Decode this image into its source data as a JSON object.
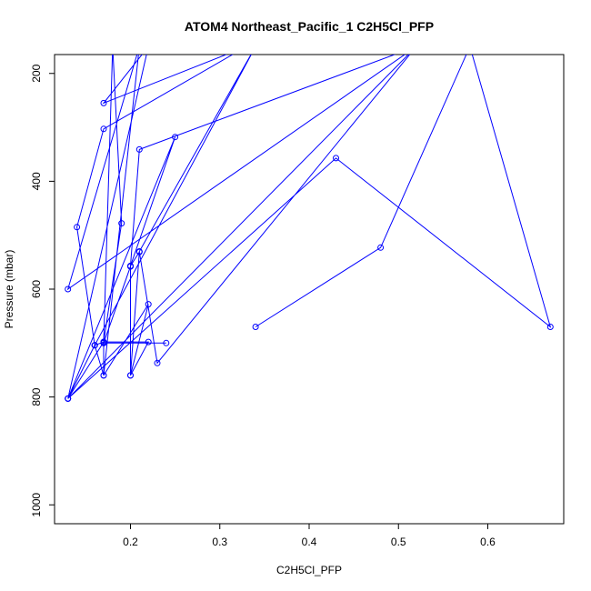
{
  "chart_data": {
    "type": "line",
    "title": "ATOM4 Northeast_Pacific_1 C2H5Cl_PFP",
    "xlabel": "C2H5Cl_PFP",
    "ylabel": "Pressure (mbar)",
    "xlim": [
      0.115,
      0.685
    ],
    "ylim": [
      1035,
      165
    ],
    "y_reversed": true,
    "grid": false,
    "x_ticks": [
      0.2,
      0.3,
      0.4,
      0.5,
      0.6
    ],
    "x_tick_labels": [
      "0.2",
      "0.3",
      "0.4",
      "0.5",
      "0.6"
    ],
    "y_ticks": [
      200,
      400,
      600,
      800,
      1000
    ],
    "y_tick_labels": [
      "200",
      "400",
      "600",
      "800",
      "1000"
    ],
    "series": [
      {
        "color": "#0000ff",
        "marker": "open-circle",
        "x": [
          0.34,
          0.48,
          0.58,
          0.67,
          0.43,
          0.13,
          0.52,
          0.23,
          0.21,
          0.2,
          0.21,
          0.52,
          0.13,
          0.21,
          0.17,
          0.22,
          0.2,
          0.22,
          0.17,
          0.16,
          0.14,
          0.17,
          0.33,
          0.17,
          0.22,
          0.13,
          0.25,
          0.2,
          0.2,
          0.21,
          0.34,
          0.16,
          0.17,
          0.19,
          0.18,
          0.17,
          0.13,
          0.16,
          0.17,
          0.17,
          0.24,
          0.17,
          0.2
        ],
        "y": [
          670,
          523,
          150,
          670,
          357,
          803,
          150,
          737,
          531,
          557,
          341,
          150,
          600,
          150,
          760,
          628,
          760,
          698,
          698,
          704,
          485,
          303,
          150,
          255,
          150,
          803,
          318,
          557,
          760,
          530,
          150,
          704,
          698,
          478,
          150,
          698,
          803,
          704,
          760,
          700,
          700,
          700,
          558
        ]
      }
    ]
  }
}
